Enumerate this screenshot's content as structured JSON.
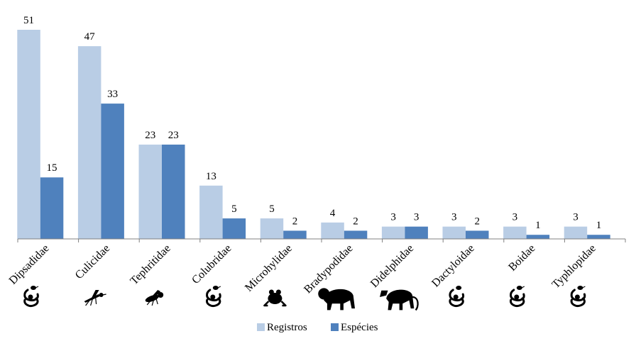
{
  "colors": {
    "registros": "#b9cde5",
    "especies": "#4f81bd",
    "axis": "#808080",
    "icon": "#000000"
  },
  "chart_data": {
    "type": "bar",
    "categories": [
      "Dipsadidae",
      "Culicidae",
      "Tephritidae",
      "Colubridae",
      "Microhylidae",
      "Bradypodidae",
      "Didelphidae",
      "Dactyloidae",
      "Boidae",
      "Typhlopidae"
    ],
    "category_icons": [
      "snake-icon",
      "mosquito-icon",
      "fly-icon",
      "snake-icon",
      "frog-icon",
      "sloth-icon",
      "opossum-icon",
      "lizard-icon",
      "snake-icon",
      "snake-icon"
    ],
    "series": [
      {
        "name": "Registros",
        "values": [
          51,
          47,
          23,
          13,
          5,
          4,
          3,
          3,
          3,
          3
        ]
      },
      {
        "name": "Espécies",
        "values": [
          15,
          33,
          23,
          5,
          2,
          2,
          3,
          2,
          1,
          1
        ]
      }
    ],
    "ylim": [
      0,
      51
    ],
    "data_labels": true,
    "grid": false,
    "legend_position": "bottom"
  }
}
